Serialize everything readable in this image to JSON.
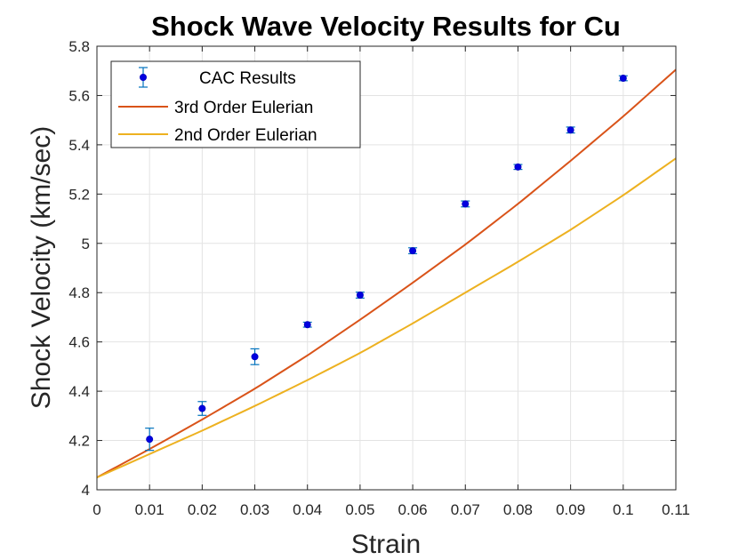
{
  "chart_data": {
    "type": "line",
    "title": "Shock Wave Velocity Results for Cu",
    "xlabel": "Strain",
    "ylabel": "Shock Velocity (km/sec)",
    "xlim": [
      0,
      0.11
    ],
    "ylim": [
      4,
      5.8
    ],
    "grid": true,
    "legend_position": "top-left",
    "xticks": [
      0,
      0.01,
      0.02,
      0.03,
      0.04,
      0.05,
      0.06,
      0.07,
      0.08,
      0.09,
      0.1,
      0.11
    ],
    "xtick_labels": [
      "0",
      "0.01",
      "0.02",
      "0.03",
      "0.04",
      "0.05",
      "0.06",
      "0.07",
      "0.08",
      "0.09",
      "0.1",
      "0.11"
    ],
    "yticks": [
      4,
      4.2,
      4.4,
      4.6,
      4.8,
      5,
      5.2,
      5.4,
      5.6,
      5.8
    ],
    "ytick_labels": [
      "4",
      "4.2",
      "4.4",
      "4.6",
      "4.8",
      "5",
      "5.2",
      "5.4",
      "5.6",
      "5.8"
    ],
    "series": [
      {
        "name": "CAC Results",
        "kind": "errorbar",
        "color": "#0000e0",
        "errcolor": "#0072bd",
        "x": [
          0.01,
          0.02,
          0.03,
          0.04,
          0.05,
          0.06,
          0.07,
          0.08,
          0.09,
          0.1
        ],
        "y": [
          4.205,
          4.33,
          4.54,
          4.67,
          4.79,
          4.97,
          5.16,
          5.31,
          5.46,
          5.67
        ],
        "err": [
          0.045,
          0.028,
          0.032,
          0.01,
          0.012,
          0.012,
          0.012,
          0.01,
          0.012,
          0.01
        ]
      },
      {
        "name": "3rd Order Eulerian",
        "kind": "line",
        "color": "#d95319",
        "x": [
          0,
          0.01,
          0.02,
          0.03,
          0.04,
          0.05,
          0.06,
          0.07,
          0.08,
          0.09,
          0.1,
          0.11
        ],
        "y": [
          4.05,
          4.165,
          4.285,
          4.41,
          4.545,
          4.69,
          4.84,
          4.995,
          5.16,
          5.335,
          5.515,
          5.705
        ]
      },
      {
        "name": "2nd Order Eulerian",
        "kind": "line",
        "color": "#edb120",
        "x": [
          0,
          0.01,
          0.02,
          0.03,
          0.04,
          0.05,
          0.06,
          0.07,
          0.08,
          0.09,
          0.1,
          0.11
        ],
        "y": [
          4.05,
          4.145,
          4.24,
          4.34,
          4.445,
          4.555,
          4.675,
          4.8,
          4.925,
          5.055,
          5.195,
          5.345
        ]
      }
    ]
  }
}
